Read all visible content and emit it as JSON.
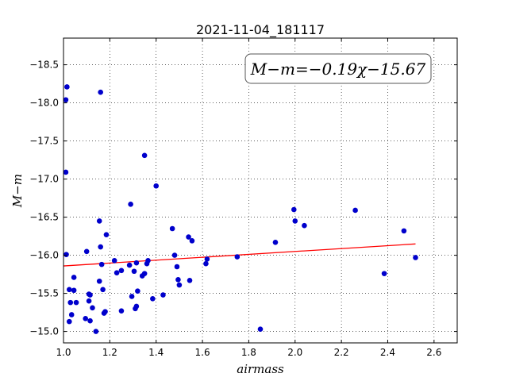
{
  "chart_data": {
    "type": "scatter",
    "title": "2021-11-04_181117",
    "xlabel": "airmass",
    "ylabel": "M−m",
    "xlim": [
      1.0,
      2.7
    ],
    "ylim": [
      -18.85,
      -14.85
    ],
    "y_inverted": true,
    "grid": true,
    "x_ticks": [
      1.0,
      1.2,
      1.4,
      1.6,
      1.8,
      2.0,
      2.2,
      2.4,
      2.6
    ],
    "x_tick_labels": [
      "1.0",
      "1.2",
      "1.4",
      "1.6",
      "1.8",
      "2.0",
      "2.2",
      "2.4",
      "2.6"
    ],
    "y_ticks": [
      -15.0,
      -15.5,
      -16.0,
      -16.5,
      -17.0,
      -17.5,
      -18.0,
      -18.5
    ],
    "y_tick_labels": [
      "−15.0",
      "−15.5",
      "−16.0",
      "−16.5",
      "−17.0",
      "−17.5",
      "−18.0",
      "−18.5"
    ],
    "annotation": "M−m=−0.19χ−15.67",
    "fit": {
      "slope": -0.19,
      "intercept": -15.67,
      "x_range": [
        1.0,
        2.52
      ],
      "color": "#ff0000"
    },
    "point_color": "#0000cc",
    "points": [
      [
        1.01,
        -18.04
      ],
      [
        1.015,
        -18.21
      ],
      [
        1.01,
        -17.09
      ],
      [
        1.012,
        -16.01
      ],
      [
        1.025,
        -15.13
      ],
      [
        1.035,
        -15.22
      ],
      [
        1.03,
        -15.38
      ],
      [
        1.055,
        -15.38
      ],
      [
        1.025,
        -15.55
      ],
      [
        1.045,
        -15.54
      ],
      [
        1.045,
        -15.71
      ],
      [
        1.095,
        -15.17
      ],
      [
        1.115,
        -15.14
      ],
      [
        1.14,
        -15.0
      ],
      [
        1.125,
        -15.31
      ],
      [
        1.11,
        -15.4
      ],
      [
        1.115,
        -15.48
      ],
      [
        1.11,
        -15.49
      ],
      [
        1.17,
        -15.55
      ],
      [
        1.175,
        -15.24
      ],
      [
        1.18,
        -15.26
      ],
      [
        1.155,
        -15.66
      ],
      [
        1.165,
        -15.88
      ],
      [
        1.1,
        -16.05
      ],
      [
        1.16,
        -16.11
      ],
      [
        1.185,
        -16.27
      ],
      [
        1.155,
        -16.45
      ],
      [
        1.16,
        -18.14
      ],
      [
        1.22,
        -15.93
      ],
      [
        1.23,
        -15.77
      ],
      [
        1.25,
        -15.8
      ],
      [
        1.25,
        -15.27
      ],
      [
        1.285,
        -15.87
      ],
      [
        1.295,
        -15.46
      ],
      [
        1.305,
        -15.79
      ],
      [
        1.31,
        -15.3
      ],
      [
        1.315,
        -15.33
      ],
      [
        1.32,
        -15.53
      ],
      [
        1.315,
        -15.9
      ],
      [
        1.29,
        -16.67
      ],
      [
        1.34,
        -15.73
      ],
      [
        1.35,
        -15.76
      ],
      [
        1.36,
        -15.89
      ],
      [
        1.365,
        -15.93
      ],
      [
        1.385,
        -15.43
      ],
      [
        1.35,
        -17.31
      ],
      [
        1.4,
        -16.91
      ],
      [
        1.43,
        -15.48
      ],
      [
        1.47,
        -16.35
      ],
      [
        1.48,
        -16.0
      ],
      [
        1.49,
        -15.85
      ],
      [
        1.495,
        -15.68
      ],
      [
        1.5,
        -15.61
      ],
      [
        1.545,
        -15.67
      ],
      [
        1.54,
        -16.24
      ],
      [
        1.555,
        -16.19
      ],
      [
        1.615,
        -15.89
      ],
      [
        1.62,
        -15.95
      ],
      [
        1.75,
        -15.98
      ],
      [
        1.85,
        -15.03
      ],
      [
        1.915,
        -16.17
      ],
      [
        1.995,
        -16.6
      ],
      [
        2.0,
        -16.45
      ],
      [
        2.04,
        -16.39
      ],
      [
        2.26,
        -16.59
      ],
      [
        2.385,
        -15.76
      ],
      [
        2.47,
        -16.32
      ],
      [
        2.52,
        -15.97
      ]
    ]
  }
}
